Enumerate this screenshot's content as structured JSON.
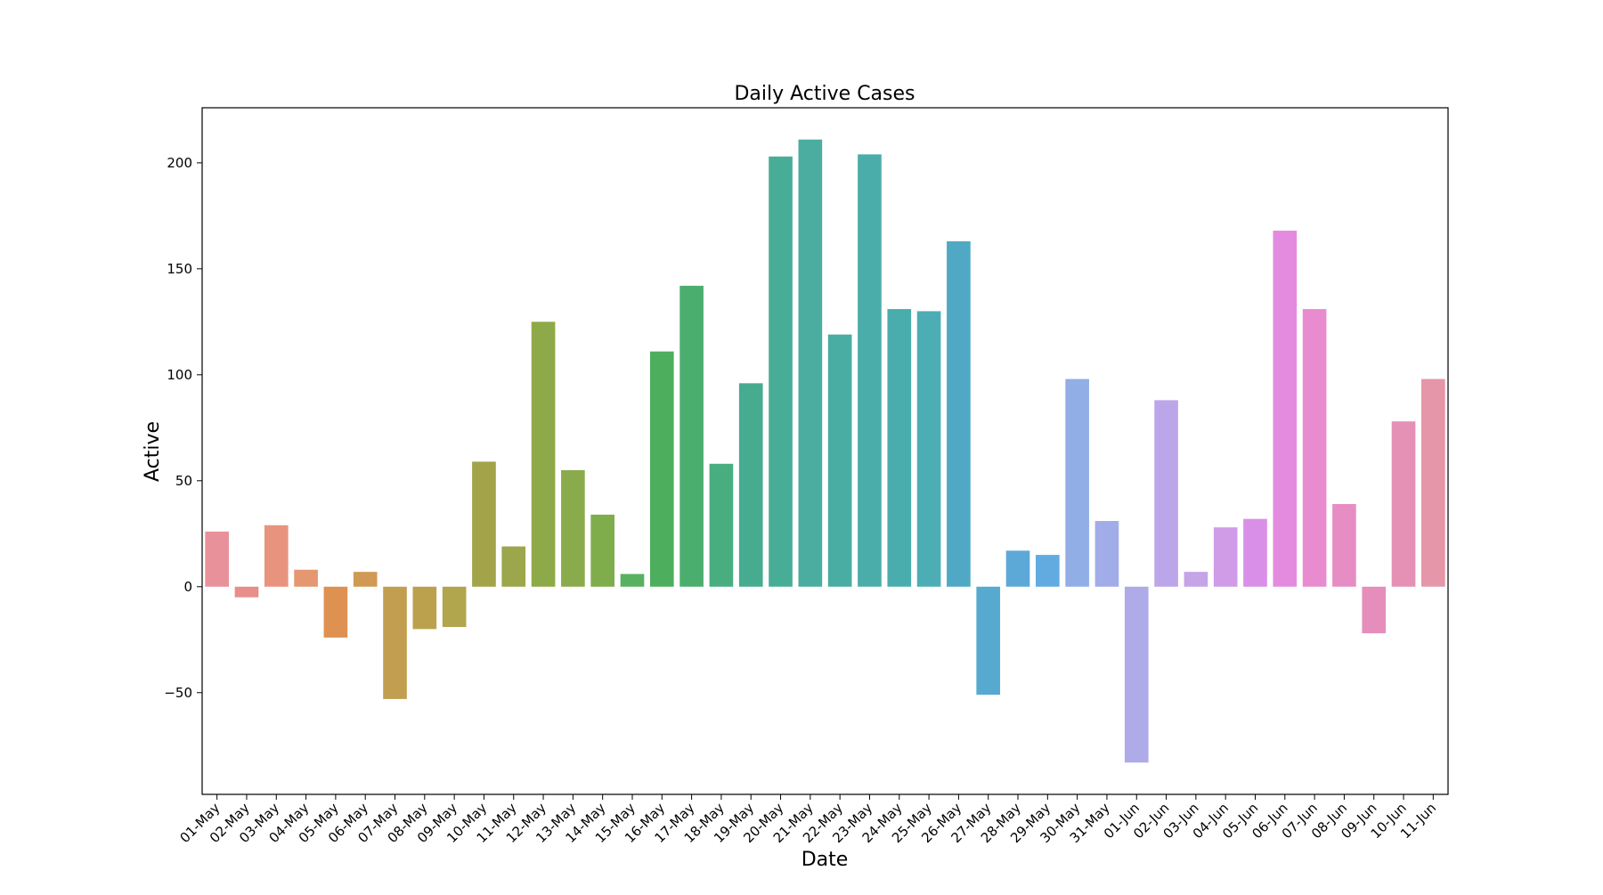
{
  "chart_data": {
    "type": "bar",
    "title": "Daily Active Cases",
    "xlabel": "Date",
    "ylabel": "Active",
    "ylim": [
      -98,
      226
    ],
    "yticks": [
      -50,
      0,
      50,
      100,
      150,
      200
    ],
    "grid": false,
    "categories": [
      "01-May",
      "02-May",
      "03-May",
      "04-May",
      "05-May",
      "06-May",
      "07-May",
      "08-May",
      "09-May",
      "10-May",
      "11-May",
      "12-May",
      "13-May",
      "14-May",
      "15-May",
      "16-May",
      "17-May",
      "18-May",
      "19-May",
      "20-May",
      "21-May",
      "22-May",
      "23-May",
      "24-May",
      "25-May",
      "26-May",
      "27-May",
      "28-May",
      "29-May",
      "30-May",
      "31-May",
      "01-Jun",
      "02-Jun",
      "03-Jun",
      "04-Jun",
      "05-Jun",
      "06-Jun",
      "07-Jun",
      "08-Jun",
      "09-Jun",
      "10-Jun",
      "11-Jun"
    ],
    "values": [
      26,
      -5,
      29,
      8,
      -24,
      7,
      -53,
      -20,
      -19,
      59,
      19,
      125,
      55,
      34,
      6,
      111,
      142,
      58,
      96,
      203,
      211,
      119,
      204,
      131,
      130,
      163,
      -51,
      17,
      15,
      98,
      31,
      -83,
      88,
      7,
      28,
      32,
      168,
      131,
      39,
      -22,
      78,
      98
    ],
    "colors": [
      "#e8919a",
      "#e78e8a",
      "#e8937e",
      "#e49770",
      "#de9150",
      "#d09a55",
      "#c29f50",
      "#bba14d",
      "#b1a54d",
      "#a3a34a",
      "#9ca64a",
      "#8ea947",
      "#8aab4b",
      "#7fad4c",
      "#58b160",
      "#4daf5e",
      "#4cae6e",
      "#48ae80",
      "#47ab8f",
      "#48ad96",
      "#4aada0",
      "#4aada3",
      "#4badaa",
      "#4aadad",
      "#4cadb5",
      "#4fa9c5",
      "#56aad0",
      "#5ca9d8",
      "#62abe0",
      "#91aee7",
      "#a1ade8",
      "#aeabe8",
      "#bca6ea",
      "#c6a4e8",
      "#d09ce8",
      "#d98fe8",
      "#e48be0",
      "#e98bcf",
      "#e68ec3",
      "#e58ebc",
      "#e590b5",
      "#e596a8"
    ]
  }
}
